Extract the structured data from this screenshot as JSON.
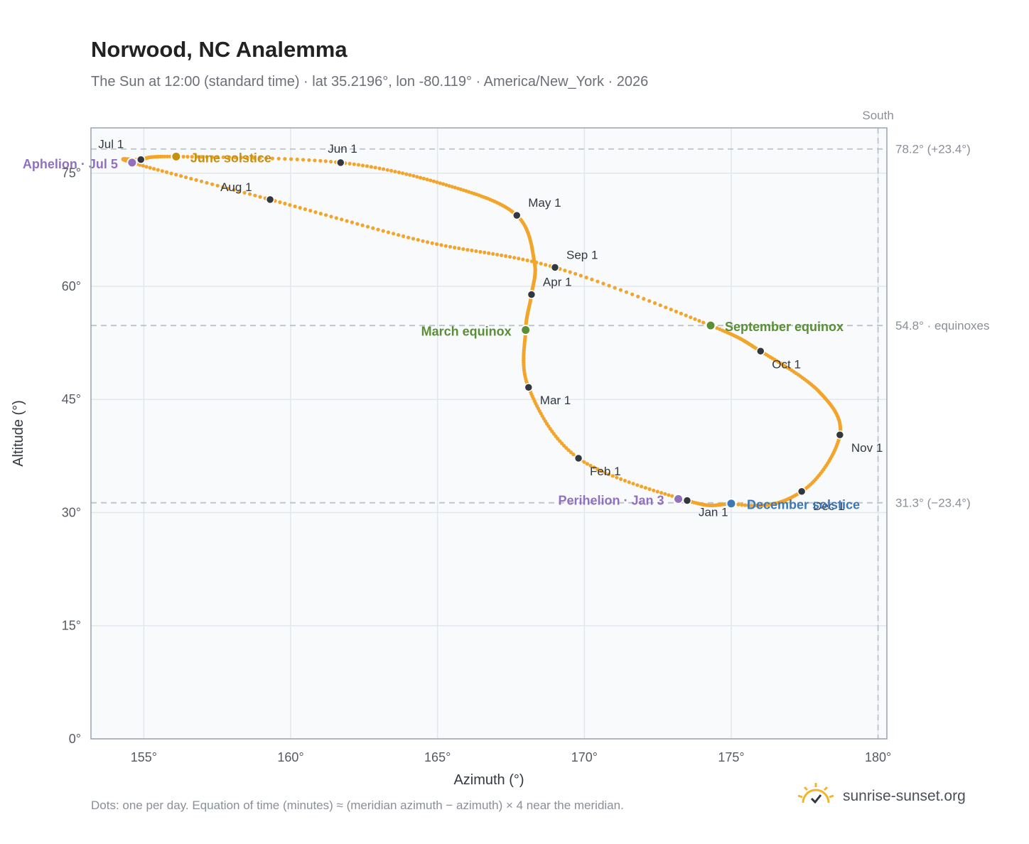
{
  "title": "Norwood, NC Analemma",
  "subtitle": "The Sun at 12:00 (standard time) · lat 35.2196°, lon -80.119° · America/New_York · 2026",
  "footnote": "Dots: one per day. Equation of time (minutes) ≈ (meridian azimuth − azimuth) × 4 near the meridian.",
  "brand": {
    "text": "sunrise-sunset.org",
    "logo_icon": "sun-check-icon"
  },
  "colors": {
    "path": "#f2a52a",
    "marker": "#333740",
    "june_solstice": "#c9900f",
    "december_solstice": "#3a78b8",
    "equinox": "#5a8f35",
    "apsis": "#9270c0",
    "reference_line": "#bcc3cc",
    "plot_background": "#f8fafc"
  },
  "chart_data": {
    "type": "scatter",
    "title": "Norwood, NC Analemma",
    "subtitle": "The Sun at 12:00 (standard time) · lat 35.2196°, lon -80.119° · America/New_York · 2026",
    "xlabel": "Azimuth (°)",
    "ylabel": "Altitude (°)",
    "xlim": [
      153.2,
      180.3
    ],
    "ylim": [
      0,
      81
    ],
    "x_ticks": [
      155,
      160,
      165,
      170,
      175,
      180
    ],
    "x_tick_labels": [
      "155°",
      "160°",
      "165°",
      "170°",
      "175°",
      "180°"
    ],
    "y_ticks": [
      0,
      15,
      30,
      45,
      60,
      75
    ],
    "y_tick_labels": [
      "0°",
      "15°",
      "30°",
      "45°",
      "60°",
      "75°"
    ],
    "grid": true,
    "meridian": {
      "azimuth": 180,
      "label": "South"
    },
    "reference_lines": [
      {
        "altitude": 78.2,
        "label": "78.2° (+23.4°)"
      },
      {
        "altitude": 54.8,
        "label": "54.8° · equinoxes"
      },
      {
        "altitude": 31.3,
        "label": "31.3° (−23.4°)"
      }
    ],
    "path_anchors": [
      {
        "azimuth": 173.5,
        "altitude": 31.6
      },
      {
        "azimuth": 169.8,
        "altitude": 37.2
      },
      {
        "azimuth": 168.1,
        "altitude": 46.6
      },
      {
        "azimuth": 168.0,
        "altitude": 54.2
      },
      {
        "azimuth": 168.2,
        "altitude": 58.9
      },
      {
        "azimuth": 168.3,
        "altitude": 63.2
      },
      {
        "azimuth": 167.7,
        "altitude": 69.4
      },
      {
        "azimuth": 165.5,
        "altitude": 73.2
      },
      {
        "azimuth": 161.7,
        "altitude": 76.4
      },
      {
        "azimuth": 156.1,
        "altitude": 77.2
      },
      {
        "azimuth": 154.9,
        "altitude": 76.8
      },
      {
        "azimuth": 154.6,
        "altitude": 76.4
      },
      {
        "azimuth": 159.3,
        "altitude": 71.5
      },
      {
        "azimuth": 164.5,
        "altitude": 66.0
      },
      {
        "azimuth": 169.0,
        "altitude": 62.5
      },
      {
        "azimuth": 174.3,
        "altitude": 54.8
      },
      {
        "azimuth": 176.0,
        "altitude": 51.4
      },
      {
        "azimuth": 178.0,
        "altitude": 46.0
      },
      {
        "azimuth": 178.7,
        "altitude": 40.3
      },
      {
        "azimuth": 177.4,
        "altitude": 32.8
      },
      {
        "azimuth": 175.0,
        "altitude": 31.2
      },
      {
        "azimuth": 173.5,
        "altitude": 31.6
      }
    ],
    "month_markers": [
      {
        "label": "Jan 1",
        "azimuth": 173.5,
        "altitude": 31.6
      },
      {
        "label": "Feb 1",
        "azimuth": 169.8,
        "altitude": 37.2
      },
      {
        "label": "Mar 1",
        "azimuth": 168.1,
        "altitude": 46.6
      },
      {
        "label": "Apr 1",
        "azimuth": 168.2,
        "altitude": 58.9
      },
      {
        "label": "May 1",
        "azimuth": 167.7,
        "altitude": 69.4
      },
      {
        "label": "Jun 1",
        "azimuth": 161.7,
        "altitude": 76.4
      },
      {
        "label": "Jul 1",
        "azimuth": 154.9,
        "altitude": 76.8
      },
      {
        "label": "Aug 1",
        "azimuth": 159.3,
        "altitude": 71.5
      },
      {
        "label": "Sep 1",
        "azimuth": 169.0,
        "altitude": 62.5
      },
      {
        "label": "Oct 1",
        "azimuth": 176.0,
        "altitude": 51.4
      },
      {
        "label": "Nov 1",
        "azimuth": 178.7,
        "altitude": 40.3
      },
      {
        "label": "Dec 1",
        "azimuth": 177.4,
        "altitude": 32.8
      }
    ],
    "events": [
      {
        "label": "June solstice",
        "azimuth": 156.1,
        "altitude": 77.2,
        "color_key": "june_solstice"
      },
      {
        "label": "December solstice",
        "azimuth": 175.0,
        "altitude": 31.2,
        "color_key": "december_solstice"
      },
      {
        "label": "March equinox",
        "azimuth": 168.0,
        "altitude": 54.2,
        "color_key": "equinox"
      },
      {
        "label": "September equinox",
        "azimuth": 174.3,
        "altitude": 54.8,
        "color_key": "equinox"
      },
      {
        "label": "Aphelion · Jul 5",
        "azimuth": 154.6,
        "altitude": 76.4,
        "color_key": "apsis"
      },
      {
        "label": "Perihelion · Jan 3",
        "azimuth": 173.2,
        "altitude": 31.8,
        "color_key": "apsis"
      }
    ]
  }
}
